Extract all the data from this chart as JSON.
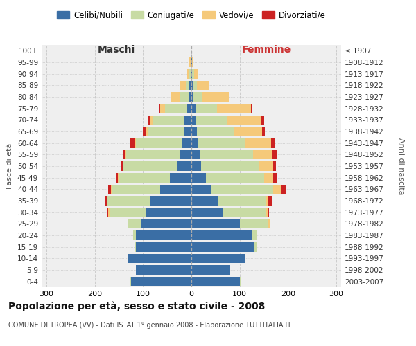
{
  "age_groups": [
    "0-4",
    "5-9",
    "10-14",
    "15-19",
    "20-24",
    "25-29",
    "30-34",
    "35-39",
    "40-44",
    "45-49",
    "50-54",
    "55-59",
    "60-64",
    "65-69",
    "70-74",
    "75-79",
    "80-84",
    "85-89",
    "90-94",
    "95-99",
    "100+"
  ],
  "birth_years": [
    "2003-2007",
    "1998-2002",
    "1993-1997",
    "1988-1992",
    "1983-1987",
    "1978-1982",
    "1973-1977",
    "1968-1972",
    "1963-1967",
    "1958-1962",
    "1953-1957",
    "1948-1952",
    "1943-1947",
    "1938-1942",
    "1933-1937",
    "1928-1932",
    "1923-1927",
    "1918-1922",
    "1913-1917",
    "1908-1912",
    "≤ 1907"
  ],
  "males": {
    "celibi": [
      125,
      115,
      130,
      115,
      115,
      105,
      95,
      85,
      65,
      45,
      30,
      25,
      20,
      15,
      15,
      10,
      5,
      4,
      2,
      1,
      0
    ],
    "coniugati": [
      2,
      0,
      2,
      2,
      5,
      25,
      75,
      90,
      100,
      105,
      110,
      110,
      95,
      75,
      65,
      45,
      18,
      8,
      3,
      1,
      0
    ],
    "vedovi": [
      0,
      0,
      0,
      0,
      1,
      1,
      2,
      0,
      2,
      2,
      2,
      2,
      3,
      5,
      5,
      10,
      20,
      12,
      5,
      2,
      0
    ],
    "divorziati": [
      0,
      0,
      0,
      0,
      0,
      1,
      3,
      5,
      5,
      5,
      5,
      5,
      8,
      5,
      5,
      2,
      0,
      0,
      0,
      0,
      0
    ]
  },
  "females": {
    "nubili": [
      100,
      80,
      110,
      130,
      125,
      100,
      65,
      55,
      40,
      30,
      20,
      18,
      15,
      12,
      10,
      8,
      5,
      4,
      2,
      1,
      0
    ],
    "coniugate": [
      2,
      0,
      2,
      5,
      10,
      60,
      90,
      100,
      130,
      120,
      120,
      110,
      95,
      75,
      65,
      45,
      18,
      8,
      4,
      1,
      0
    ],
    "vedove": [
      0,
      0,
      0,
      0,
      1,
      2,
      3,
      5,
      15,
      20,
      30,
      40,
      55,
      60,
      70,
      70,
      55,
      25,
      8,
      3,
      0
    ],
    "divorziate": [
      0,
      0,
      0,
      0,
      1,
      1,
      3,
      8,
      10,
      8,
      5,
      8,
      8,
      5,
      5,
      2,
      0,
      0,
      0,
      0,
      0
    ]
  },
  "colors": {
    "celibi": "#3a6ea5",
    "coniugati": "#c8dba4",
    "vedovi": "#f5c97a",
    "divorziati": "#cc2222"
  },
  "xlim": 310,
  "title_main": "Popolazione per età, sesso e stato civile - 2008",
  "title_sub": "COMUNE DI TROPEA (VV) - Dati ISTAT 1° gennaio 2008 - Elaborazione TUTTITALIA.IT",
  "legend_labels": [
    "Celibi/Nubili",
    "Coniugati/e",
    "Vedovi/e",
    "Divorziati/e"
  ],
  "ylabel_left": "Fasce di età",
  "ylabel_right": "Anni di nascita",
  "xlabel_males": "Maschi",
  "xlabel_females": "Femmine",
  "background_color": "#ffffff",
  "plot_bg": "#efefef",
  "grid_color": "#cccccc"
}
